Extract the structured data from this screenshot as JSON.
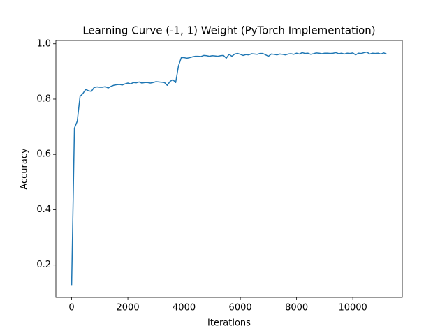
{
  "chart_data": {
    "type": "line",
    "title": "Learning Curve (-1, 1) Weight (PyTorch Implementation)",
    "x_label": "Iterations",
    "y_label": "Accuracy",
    "xlim": [
      -560,
      11760
    ],
    "ylim": [
      0.083,
      1.012
    ],
    "xticks": [
      0,
      2000,
      4000,
      6000,
      8000,
      10000
    ],
    "yticks": [
      0.2,
      0.4,
      0.6,
      0.8,
      {
        "value": 1,
        "label": "1.0"
      }
    ],
    "series": [
      {
        "color": "#1f77b4",
        "x": [
          0,
          100,
          200,
          300,
          400,
          500,
          600,
          700,
          800,
          900,
          1000,
          1100,
          1200,
          1300,
          1400,
          1500,
          1600,
          1700,
          1800,
          1900,
          2000,
          2100,
          2200,
          2300,
          2400,
          2500,
          2600,
          2700,
          2800,
          2900,
          3000,
          3100,
          3200,
          3300,
          3400,
          3500,
          3600,
          3700,
          3800,
          3900,
          4000,
          4100,
          4200,
          4300,
          4400,
          4500,
          4600,
          4700,
          4800,
          4900,
          5000,
          5100,
          5200,
          5300,
          5400,
          5500,
          5600,
          5700,
          5800,
          5900,
          6000,
          6100,
          6200,
          6300,
          6400,
          6500,
          6600,
          6700,
          6800,
          6900,
          7000,
          7100,
          7200,
          7300,
          7400,
          7500,
          7600,
          7700,
          7800,
          7900,
          8000,
          8100,
          8200,
          8300,
          8400,
          8500,
          8600,
          8700,
          8800,
          8900,
          9000,
          9100,
          9200,
          9300,
          9400,
          9500,
          9600,
          9700,
          9800,
          9900,
          10000,
          10100,
          10200,
          10300,
          10400,
          10500,
          10600,
          10700,
          10800,
          10900,
          11000,
          11100,
          11200
        ],
        "values": [
          0.125,
          0.695,
          0.72,
          0.81,
          0.82,
          0.835,
          0.83,
          0.828,
          0.842,
          0.844,
          0.843,
          0.843,
          0.845,
          0.84,
          0.846,
          0.85,
          0.852,
          0.853,
          0.851,
          0.855,
          0.858,
          0.855,
          0.86,
          0.859,
          0.862,
          0.858,
          0.86,
          0.86,
          0.858,
          0.86,
          0.863,
          0.862,
          0.861,
          0.86,
          0.85,
          0.864,
          0.87,
          0.86,
          0.92,
          0.95,
          0.95,
          0.948,
          0.95,
          0.953,
          0.955,
          0.955,
          0.954,
          0.958,
          0.957,
          0.955,
          0.957,
          0.956,
          0.955,
          0.957,
          0.958,
          0.948,
          0.962,
          0.955,
          0.963,
          0.965,
          0.962,
          0.958,
          0.961,
          0.96,
          0.964,
          0.963,
          0.962,
          0.965,
          0.965,
          0.96,
          0.955,
          0.963,
          0.962,
          0.96,
          0.963,
          0.962,
          0.96,
          0.963,
          0.964,
          0.962,
          0.966,
          0.963,
          0.968,
          0.965,
          0.966,
          0.962,
          0.964,
          0.967,
          0.966,
          0.964,
          0.966,
          0.966,
          0.965,
          0.966,
          0.968,
          0.964,
          0.966,
          0.963,
          0.966,
          0.965,
          0.967,
          0.96,
          0.966,
          0.965,
          0.968,
          0.97,
          0.963,
          0.966,
          0.965,
          0.966,
          0.963,
          0.967,
          0.963
        ]
      }
    ]
  }
}
